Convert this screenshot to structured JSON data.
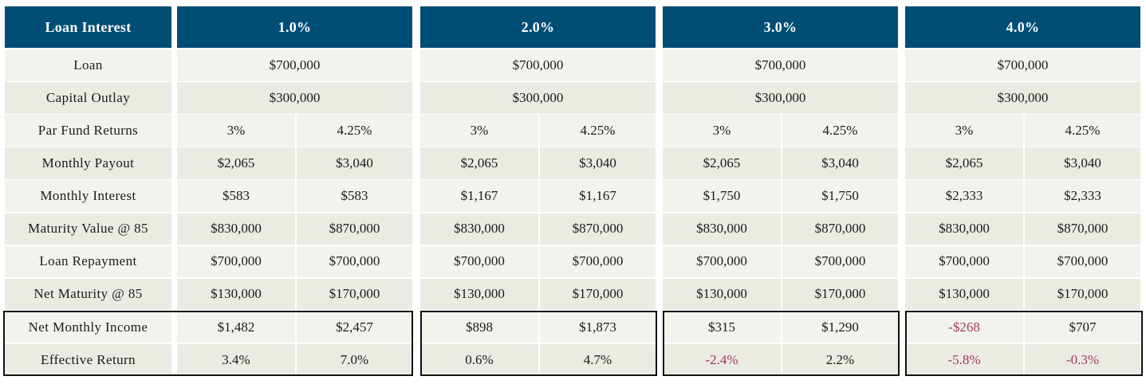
{
  "table": {
    "header_label": "Loan Interest",
    "scenarios": [
      {
        "rate": "1.0%",
        "loan": "$700,000",
        "capital_outlay": "$300,000",
        "cols": [
          {
            "par_fund_return": "3%",
            "monthly_payout": "$2,065",
            "monthly_interest": "$583",
            "maturity_value": "$830,000",
            "loan_repayment": "$700,000",
            "net_maturity": "$130,000",
            "net_monthly_income": "$1,482",
            "effective_return": "3.4%"
          },
          {
            "par_fund_return": "4.25%",
            "monthly_payout": "$3,040",
            "monthly_interest": "$583",
            "maturity_value": "$870,000",
            "loan_repayment": "$700,000",
            "net_maturity": "$170,000",
            "net_monthly_income": "$2,457",
            "effective_return": "7.0%"
          }
        ]
      },
      {
        "rate": "2.0%",
        "loan": "$700,000",
        "capital_outlay": "$300,000",
        "cols": [
          {
            "par_fund_return": "3%",
            "monthly_payout": "$2,065",
            "monthly_interest": "$1,167",
            "maturity_value": "$830,000",
            "loan_repayment": "$700,000",
            "net_maturity": "$130,000",
            "net_monthly_income": "$898",
            "effective_return": "0.6%"
          },
          {
            "par_fund_return": "4.25%",
            "monthly_payout": "$3,040",
            "monthly_interest": "$1,167",
            "maturity_value": "$870,000",
            "loan_repayment": "$700,000",
            "net_maturity": "$170,000",
            "net_monthly_income": "$1,873",
            "effective_return": "4.7%"
          }
        ]
      },
      {
        "rate": "3.0%",
        "loan": "$700,000",
        "capital_outlay": "$300,000",
        "cols": [
          {
            "par_fund_return": "3%",
            "monthly_payout": "$2,065",
            "monthly_interest": "$1,750",
            "maturity_value": "$830,000",
            "loan_repayment": "$700,000",
            "net_maturity": "$130,000",
            "net_monthly_income": "$315",
            "effective_return": "-2.4%"
          },
          {
            "par_fund_return": "4.25%",
            "monthly_payout": "$3,040",
            "monthly_interest": "$1,750",
            "maturity_value": "$870,000",
            "loan_repayment": "$700,000",
            "net_maturity": "$170,000",
            "net_monthly_income": "$1,290",
            "effective_return": "2.2%"
          }
        ]
      },
      {
        "rate": "4.0%",
        "loan": "$700,000",
        "capital_outlay": "$300,000",
        "cols": [
          {
            "par_fund_return": "3%",
            "monthly_payout": "$2,065",
            "monthly_interest": "$2,333",
            "maturity_value": "$830,000",
            "loan_repayment": "$700,000",
            "net_maturity": "$130,000",
            "net_monthly_income": "-$268",
            "effective_return": "-5.8%"
          },
          {
            "par_fund_return": "4.25%",
            "monthly_payout": "$3,040",
            "monthly_interest": "$2,333",
            "maturity_value": "$870,000",
            "loan_repayment": "$700,000",
            "net_maturity": "$170,000",
            "net_monthly_income": "$707",
            "effective_return": "-0.3%"
          }
        ]
      }
    ],
    "rows": [
      {
        "key": "loan",
        "label": "Loan",
        "span": true
      },
      {
        "key": "capital_outlay",
        "label": "Capital Outlay",
        "span": true
      },
      {
        "key": "par_fund_return",
        "label": "Par Fund Returns",
        "span": false
      },
      {
        "key": "monthly_payout",
        "label": "Monthly Payout",
        "span": false
      },
      {
        "key": "monthly_interest",
        "label": "Monthly Interest",
        "span": false
      },
      {
        "key": "maturity_value",
        "label": "Maturity Value @ 85",
        "span": false
      },
      {
        "key": "loan_repayment",
        "label": "Loan Repayment",
        "span": false
      },
      {
        "key": "net_maturity",
        "label": "Net Maturity @ 85",
        "span": false
      },
      {
        "key": "net_monthly_income",
        "label": "Net Monthly Income",
        "span": false
      },
      {
        "key": "effective_return",
        "label": "Effective Return",
        "span": false
      }
    ],
    "colors": {
      "header_bg": "#004d75",
      "row_light": "#f3f3ee",
      "row_dark": "#ebebe4",
      "negative": "#a3395a"
    }
  }
}
